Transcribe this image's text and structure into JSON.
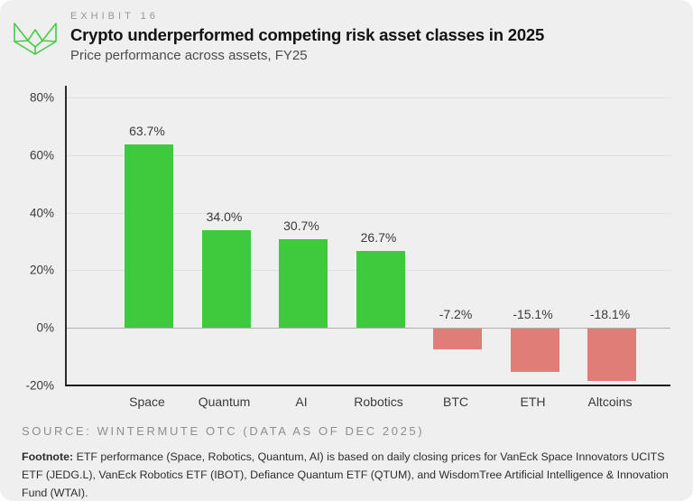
{
  "header": {
    "exhibit": "EXHIBIT 16",
    "title": "Crypto underperformed competing risk asset classes in 2025",
    "subtitle": "Price performance across assets, FY25"
  },
  "logo": {
    "name": "wintermute-logo",
    "color": "#44cc44"
  },
  "chart_data": {
    "type": "bar",
    "title": "Crypto underperformed competing risk asset classes in 2025",
    "subtitle": "Price performance across assets, FY25",
    "categories": [
      "Space",
      "Quantum",
      "AI",
      "Robotics",
      "BTC",
      "ETH",
      "Altcoins"
    ],
    "values": [
      63.7,
      34.0,
      30.7,
      26.7,
      -7.2,
      -15.1,
      -18.1
    ],
    "value_labels": [
      "63.7%",
      "34.0%",
      "30.7%",
      "26.7%",
      "-7.2%",
      "-15.1%",
      "-18.1%"
    ],
    "xlabel": "",
    "ylabel": "",
    "ylim": [
      -20,
      80
    ],
    "y_ticks": [
      {
        "value": 80,
        "label": "80%"
      },
      {
        "value": 60,
        "label": "60%"
      },
      {
        "value": 40,
        "label": "40%"
      },
      {
        "value": 20,
        "label": "20%"
      },
      {
        "value": 0,
        "label": "0%"
      },
      {
        "value": -20,
        "label": "-20%"
      }
    ],
    "grid": true,
    "legend": "none",
    "positive_color": "#3dca3d",
    "negative_color": "#e17d77",
    "gridline_color": "#e1e1e1",
    "zero_line_color": "#aeaeae",
    "axis_color": "#1b1b1b",
    "background_color": "#efefef"
  },
  "footer": {
    "source": "SOURCE: WINTERMUTE OTC (DATA AS OF DEC 2025)",
    "footnote_label": "Footnote:",
    "footnote_text": " ETF performance (Space, Robotics, Quantum, AI) is based on daily closing prices for VanEck Space Innovators UCITS ETF (JEDG.L), VanEck Robotics ETF (IBOT), Defiance Quantum ETF (QTUM), and WisdomTree Artificial Intelligence & Innovation Fund (WTAI)."
  }
}
